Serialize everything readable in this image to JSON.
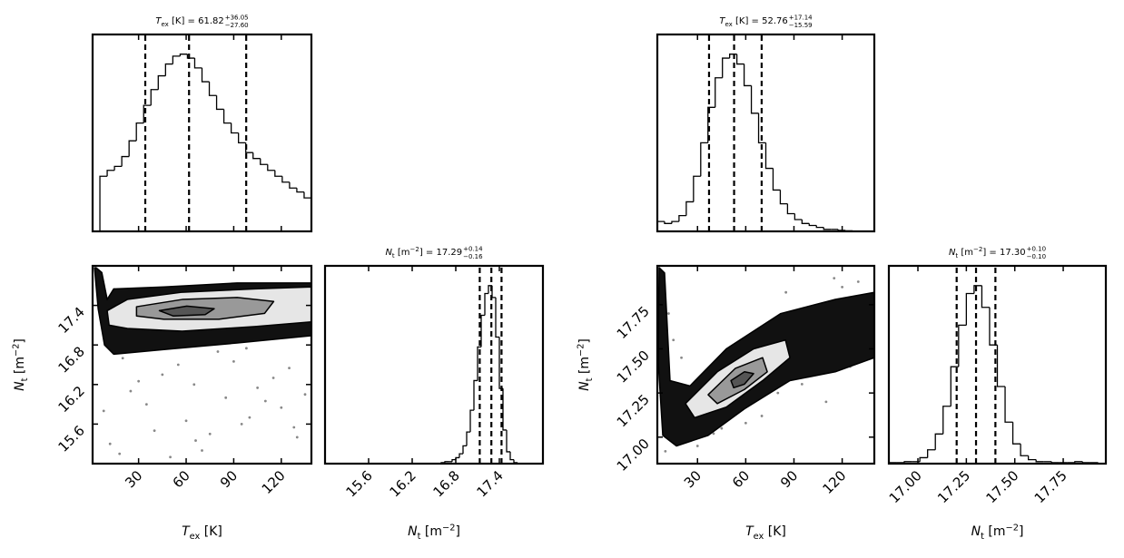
{
  "chart_data": [
    {
      "type": "histogram",
      "title": [
        {
          "text": "T",
          "style": "italic"
        },
        {
          "text": "ex",
          "style": "sub"
        },
        {
          "text": " [K] = 61.82"
        },
        {
          "text": "+36.05",
          "style": "upper"
        },
        {
          "text": "−27.60",
          "style": "lower"
        }
      ],
      "bins": [
        1.0,
        5.6,
        10.2,
        14.8,
        19.4,
        24.0,
        28.6,
        33.2,
        37.8,
        42.4,
        47.0,
        51.6,
        56.2,
        60.8,
        65.4,
        70.0,
        74.6,
        79.2,
        83.8,
        88.4,
        93.0,
        97.6,
        102.2,
        106.8,
        111.4,
        116.0,
        120.6,
        125.2,
        129.8,
        134.4,
        139.0
      ],
      "values": [
        0,
        0.28,
        0.31,
        0.33,
        0.38,
        0.46,
        0.55,
        0.64,
        0.72,
        0.79,
        0.85,
        0.89,
        0.9,
        0.88,
        0.83,
        0.76,
        0.69,
        0.62,
        0.55,
        0.5,
        0.45,
        0.4,
        0.37,
        0.34,
        0.31,
        0.28,
        0.25,
        0.22,
        0.2,
        0.17
      ],
      "quantiles": [
        34.22,
        61.82,
        97.87
      ],
      "xlim": [
        1,
        139
      ],
      "ylim": [
        0,
        1
      ],
      "xticks": [
        30,
        60,
        90,
        120
      ],
      "color": "#000000"
    },
    {
      "type": "scatter",
      "xlabel": [
        {
          "text": "T",
          "style": "italic"
        },
        {
          "text": "ex",
          "style": "sub"
        },
        {
          "text": " [K]"
        }
      ],
      "ylabel": [
        {
          "text": "N",
          "style": "italic"
        },
        {
          "text": "t",
          "style": "sub"
        },
        {
          "text": " [m"
        },
        {
          "text": "−2",
          "style": "sup"
        },
        {
          "text": "]"
        }
      ],
      "xlim": [
        1,
        139
      ],
      "ylim": [
        15.0,
        18.0
      ],
      "xticks": [
        30,
        60,
        90,
        120
      ],
      "yticks": [
        15.6,
        16.2,
        16.8,
        17.4
      ],
      "points": {
        "color": "#888888",
        "x": [
          12,
          25,
          40,
          55,
          70,
          85,
          100,
          115,
          130,
          20,
          35,
          50,
          65,
          80,
          95,
          110,
          125,
          8,
          18,
          45,
          60,
          75,
          90,
          105,
          120,
          135,
          30,
          66,
          98,
          128
        ],
        "y": [
          15.3,
          16.1,
          15.5,
          16.5,
          15.2,
          16.0,
          15.7,
          16.3,
          15.4,
          16.6,
          15.9,
          15.1,
          16.2,
          16.7,
          15.6,
          15.95,
          16.45,
          15.8,
          15.15,
          16.35,
          15.65,
          15.45,
          16.55,
          16.15,
          15.85,
          16.05,
          16.25,
          15.35,
          16.75,
          15.55
        ]
      },
      "contours": [
        {
          "color": "#111111",
          "x": [
            3.3,
            6.8,
            10.2,
            14.3,
            46.0,
            92.2,
            139,
            139,
            92.2,
            46.0,
            14.3,
            8.5,
            4.5,
            2.2
          ],
          "y": [
            17.97,
            17.9,
            17.49,
            17.65,
            17.68,
            17.74,
            17.74,
            16.94,
            16.83,
            16.73,
            16.66,
            16.8,
            17.35,
            17.97
          ]
        },
        {
          "color": "#e6e6e6",
          "x": [
            10.2,
            22.9,
            57.5,
            103.7,
            139,
            139,
            103.7,
            57.5,
            22.9,
            11.4
          ],
          "y": [
            17.32,
            17.49,
            17.6,
            17.65,
            17.68,
            17.15,
            17.08,
            17.01,
            17.05,
            17.1
          ]
        },
        {
          "color": "#999999",
          "x": [
            28.7,
            57.5,
            92.2,
            115.2,
            109.5,
            80.6,
            46.0,
            28.7
          ],
          "y": [
            17.38,
            17.49,
            17.52,
            17.46,
            17.28,
            17.19,
            17.19,
            17.24
          ]
        },
        {
          "color": "#555555",
          "x": [
            43.1,
            60.4,
            77.7,
            72.0,
            51.8
          ],
          "y": [
            17.32,
            17.39,
            17.35,
            17.26,
            17.24
          ]
        }
      ]
    },
    {
      "type": "histogram",
      "title": [
        {
          "text": "N",
          "style": "italic"
        },
        {
          "text": "t",
          "style": "sub"
        },
        {
          "text": " [m"
        },
        {
          "text": "−2",
          "style": "sup"
        },
        {
          "text": "] = 17.29"
        },
        {
          "text": "+0.14",
          "style": "upper"
        },
        {
          "text": "−0.16",
          "style": "lower"
        }
      ],
      "xlabel": [
        {
          "text": "N",
          "style": "italic"
        },
        {
          "text": "t",
          "style": "sub"
        },
        {
          "text": " [m"
        },
        {
          "text": "−2",
          "style": "sup"
        },
        {
          "text": "]"
        }
      ],
      "bins": [
        16.5,
        16.55,
        16.6,
        16.65,
        16.7,
        16.75,
        16.8,
        16.85,
        16.9,
        16.95,
        17.0,
        17.05,
        17.1,
        17.15,
        17.2,
        17.25,
        17.3,
        17.35,
        17.4,
        17.45,
        17.5,
        17.55,
        17.6,
        17.65,
        17.7
      ],
      "values": [
        0,
        0,
        0.005,
        0.01,
        0.01,
        0.02,
        0.03,
        0.05,
        0.09,
        0.16,
        0.27,
        0.42,
        0.59,
        0.75,
        0.86,
        0.9,
        0.84,
        0.64,
        0.38,
        0.17,
        0.06,
        0.02,
        0.005,
        0
      ],
      "quantiles": [
        17.13,
        17.29,
        17.43
      ],
      "xlim": [
        15.0,
        18.0
      ],
      "ylim": [
        0,
        1
      ],
      "xticks": [
        15.6,
        16.2,
        16.8,
        17.4
      ],
      "color": "#000000"
    },
    {
      "type": "histogram",
      "title": [
        {
          "text": "T",
          "style": "italic"
        },
        {
          "text": "ex",
          "style": "sub"
        },
        {
          "text": " [K] = 52.76"
        },
        {
          "text": "+17.14",
          "style": "upper"
        },
        {
          "text": "−15.59",
          "style": "lower"
        }
      ],
      "bins": [
        5,
        9.5,
        14,
        18.5,
        23,
        27.5,
        32,
        36.5,
        41,
        45.5,
        50,
        54.5,
        59,
        63.5,
        68,
        72.5,
        77,
        81.5,
        86,
        90.5,
        95,
        99.5,
        104,
        108.5,
        113,
        117.5,
        122,
        126.5,
        131,
        135.5,
        140
      ],
      "values": [
        0.05,
        0.04,
        0.05,
        0.08,
        0.15,
        0.28,
        0.45,
        0.63,
        0.78,
        0.88,
        0.9,
        0.85,
        0.74,
        0.6,
        0.45,
        0.32,
        0.21,
        0.14,
        0.09,
        0.06,
        0.04,
        0.03,
        0.02,
        0.01,
        0.01,
        0.005,
        0.003,
        0,
        0,
        0
      ],
      "quantiles": [
        37.17,
        52.76,
        69.9
      ],
      "xlim": [
        5,
        140
      ],
      "ylim": [
        0,
        1
      ],
      "xticks": [
        30,
        60,
        90,
        120
      ],
      "color": "#000000"
    },
    {
      "type": "scatter",
      "xlabel": [
        {
          "text": "T",
          "style": "italic"
        },
        {
          "text": "ex",
          "style": "sub"
        },
        {
          "text": " [K]"
        }
      ],
      "ylabel": [
        {
          "text": "N",
          "style": "italic"
        },
        {
          "text": "t",
          "style": "sub"
        },
        {
          "text": " [m"
        },
        {
          "text": "−2",
          "style": "sup"
        },
        {
          "text": "]"
        }
      ],
      "xlim": [
        5,
        140
      ],
      "ylim": [
        16.85,
        17.97
      ],
      "xticks": [
        30,
        60,
        90,
        120
      ],
      "yticks": [
        {
          "value": 17,
          "label": "17.00"
        },
        17.25,
        {
          "value": 17.5,
          "label": "17.50"
        },
        17.75
      ],
      "points": {
        "color": "#888888",
        "x": [
          10,
          15,
          30,
          45,
          70,
          100,
          120,
          135,
          130,
          110,
          90,
          80,
          60,
          125,
          137,
          105,
          20,
          12,
          40,
          95,
          115,
          132,
          85,
          127
        ],
        "y": [
          16.92,
          17.55,
          16.95,
          17.05,
          17.12,
          17.62,
          17.85,
          17.65,
          17.88,
          17.2,
          17.68,
          17.25,
          17.08,
          17.4,
          17.78,
          17.72,
          17.45,
          17.7,
          17.02,
          17.3,
          17.9,
          17.5,
          17.82,
          17.6
        ]
      },
      "contours": [
        {
          "color": "#111111",
          "x": [
            6.1,
            9.5,
            12.9,
            25.3,
            47.9,
            81.8,
            115.7,
            140,
            140,
            115.7,
            87.5,
            59.2,
            36.6,
            16.9,
            8.4,
            5.6
          ],
          "y": [
            17.96,
            17.93,
            17.32,
            17.29,
            17.5,
            17.7,
            17.78,
            17.82,
            17.45,
            17.37,
            17.32,
            17.16,
            17.01,
            16.95,
            17.01,
            17.42
          ]
        },
        {
          "color": "#e6e6e6",
          "x": [
            22.5,
            42.3,
            64.9,
            84.7,
            87.5,
            70.5,
            47.9,
            28.2
          ],
          "y": [
            17.19,
            17.37,
            17.5,
            17.55,
            17.45,
            17.32,
            17.17,
            17.11
          ]
        },
        {
          "color": "#999999",
          "x": [
            36.6,
            53.6,
            70.5,
            73.4,
            59.2,
            42.3
          ],
          "y": [
            17.24,
            17.39,
            17.45,
            17.37,
            17.27,
            17.19
          ]
        },
        {
          "color": "#555555",
          "x": [
            50.8,
            59.2,
            64.9,
            59.2,
            52.5
          ],
          "y": [
            17.32,
            17.37,
            17.36,
            17.3,
            17.28
          ]
        }
      ]
    },
    {
      "type": "histogram",
      "title": [
        {
          "text": "N",
          "style": "italic"
        },
        {
          "text": "t",
          "style": "sub"
        },
        {
          "text": " [m"
        },
        {
          "text": "−2",
          "style": "sup"
        },
        {
          "text": "] = 17.30"
        },
        {
          "text": "+0.10",
          "style": "upper"
        },
        {
          "text": "−0.10",
          "style": "lower"
        }
      ],
      "xlabel": [
        {
          "text": "N",
          "style": "italic"
        },
        {
          "text": "t",
          "style": "sub"
        },
        {
          "text": " [m"
        },
        {
          "text": "−2",
          "style": "sup"
        },
        {
          "text": "]"
        }
      ],
      "bins": [
        16.85,
        16.89,
        16.93,
        16.97,
        17.01,
        17.05,
        17.09,
        17.13,
        17.17,
        17.21,
        17.25,
        17.29,
        17.33,
        17.37,
        17.41,
        17.45,
        17.49,
        17.53,
        17.57,
        17.61,
        17.65,
        17.69,
        17.73,
        17.77,
        17.81,
        17.85,
        17.89,
        17.93,
        17.97
      ],
      "values": [
        0.005,
        0.005,
        0.01,
        0.01,
        0.03,
        0.07,
        0.15,
        0.29,
        0.49,
        0.7,
        0.86,
        0.9,
        0.79,
        0.6,
        0.39,
        0.21,
        0.1,
        0.04,
        0.02,
        0.01,
        0.01,
        0.005,
        0.005,
        0.005,
        0.01,
        0.005,
        0.005,
        0
      ],
      "quantiles": [
        17.2,
        17.3,
        17.4
      ],
      "xlim": [
        16.85,
        17.97
      ],
      "ylim": [
        0,
        1
      ],
      "xticks": [
        {
          "value": 17,
          "label": "17.00"
        },
        17.25,
        {
          "value": 17.5,
          "label": "17.50"
        },
        17.75
      ],
      "color": "#000000"
    }
  ]
}
